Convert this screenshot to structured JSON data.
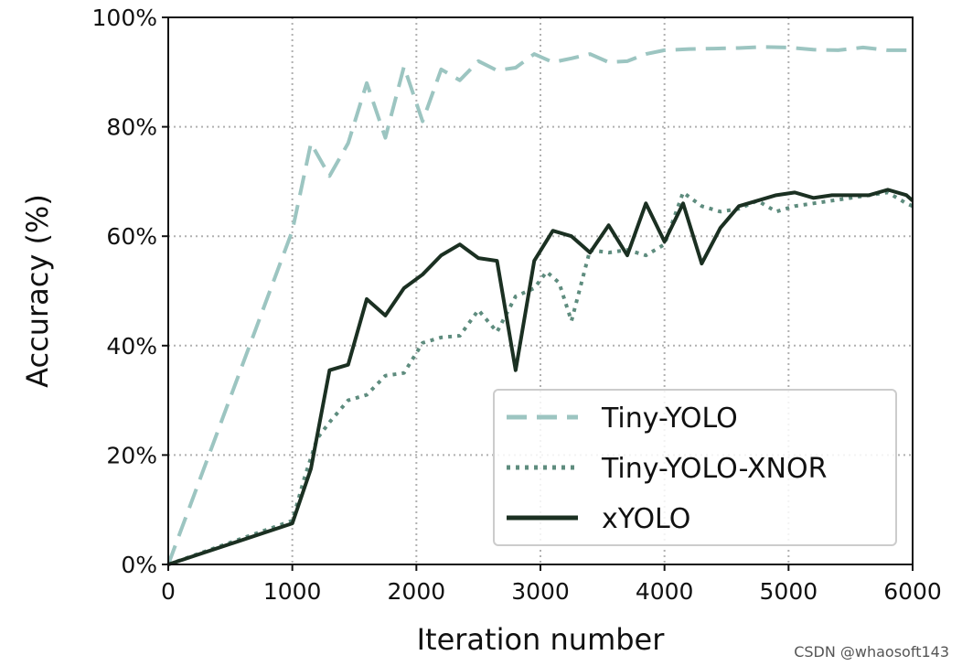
{
  "chart_data": {
    "type": "line",
    "title": "",
    "xlabel": "Iteration number",
    "ylabel": "Accuracy (%)",
    "xlim": [
      0,
      6000
    ],
    "ylim": [
      0,
      100
    ],
    "xticks": [
      0,
      1000,
      2000,
      3000,
      4000,
      5000,
      6000
    ],
    "xtick_labels": [
      "0",
      "1000",
      "2000",
      "3000",
      "4000",
      "5000",
      "6000"
    ],
    "yticks": [
      0,
      20,
      40,
      60,
      80,
      100
    ],
    "ytick_labels": [
      "0%",
      "20%",
      "40%",
      "60%",
      "80%",
      "100%"
    ],
    "grid": true,
    "legend_position": "lower-right",
    "series": [
      {
        "name": "Tiny-YOLO",
        "style": "dashed",
        "color": "#9cc5c1",
        "x": [
          0,
          1000,
          1150,
          1300,
          1450,
          1600,
          1750,
          1900,
          2050,
          2200,
          2350,
          2500,
          2650,
          2800,
          2950,
          3100,
          3250,
          3400,
          3550,
          3700,
          3850,
          4000,
          4200,
          4400,
          4600,
          4800,
          5000,
          5200,
          5400,
          5600,
          5800,
          6000
        ],
        "y": [
          0,
          61,
          77,
          71,
          77,
          88,
          78,
          91,
          81,
          90.5,
          88.5,
          92,
          90.3,
          90.8,
          93.3,
          91.8,
          92.5,
          93.3,
          91.8,
          92,
          93.3,
          94,
          94.2,
          94.3,
          94.4,
          94.6,
          94.5,
          94.1,
          94,
          94.5,
          94,
          94
        ]
      },
      {
        "name": "Tiny-YOLO-XNOR",
        "style": "dotted",
        "color": "#5e8c7e",
        "x": [
          0,
          1000,
          1100,
          1200,
          1300,
          1450,
          1600,
          1750,
          1900,
          2050,
          2200,
          2350,
          2500,
          2650,
          2800,
          2950,
          3050,
          3150,
          3250,
          3400,
          3550,
          3700,
          3850,
          4000,
          4150,
          4300,
          4450,
          4600,
          4750,
          4900,
          5050,
          5200,
          5350,
          5500,
          5650,
          5800,
          5950,
          6000
        ],
        "y": [
          0,
          8,
          16,
          23,
          26,
          30,
          31,
          34.5,
          35,
          40.5,
          41.5,
          41.8,
          46.5,
          42.5,
          49,
          50.5,
          53.5,
          51.5,
          44.5,
          57.5,
          57,
          57.5,
          56.5,
          58.5,
          68,
          65.5,
          64.5,
          65,
          66.5,
          64.5,
          65.5,
          66,
          66.5,
          67,
          67.5,
          68,
          66,
          65.5
        ]
      },
      {
        "name": "xYOLO",
        "style": "solid",
        "color": "#1b3022",
        "x": [
          0,
          1000,
          1150,
          1300,
          1450,
          1600,
          1750,
          1900,
          2050,
          2200,
          2350,
          2500,
          2650,
          2800,
          2950,
          3100,
          3250,
          3400,
          3550,
          3700,
          3850,
          4000,
          4150,
          4300,
          4450,
          4600,
          4750,
          4900,
          5050,
          5200,
          5350,
          5500,
          5650,
          5800,
          5950,
          6000
        ],
        "y": [
          0,
          7.5,
          17.5,
          35.5,
          36.5,
          48.5,
          45.5,
          50.5,
          53,
          56.5,
          58.5,
          56,
          55.5,
          35.5,
          55.5,
          61,
          60,
          57,
          62,
          56.5,
          66,
          59,
          66,
          55,
          61.5,
          65.5,
          66.5,
          67.5,
          68,
          67,
          67.5,
          67.5,
          67.5,
          68.5,
          67.5,
          66.5
        ]
      }
    ]
  },
  "watermark": "CSDN @whaosoft143"
}
